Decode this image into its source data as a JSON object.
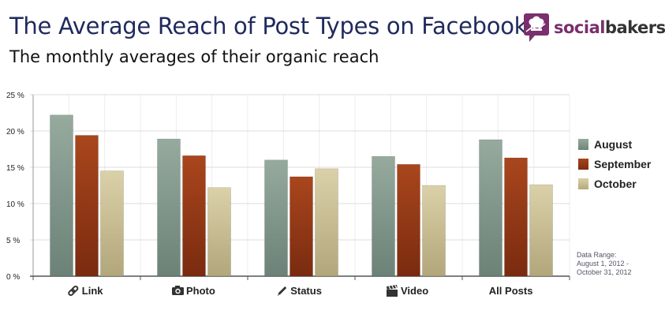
{
  "header": {
    "title": "The Average Reach of Post Types on Facebook",
    "subtitle": "The monthly averages of their organic reach"
  },
  "brand": {
    "name_part1": "social",
    "name_part2": "bakers",
    "logo_icon": "chef-hat-speech-bubble-icon"
  },
  "note": {
    "line1": "Data Range:",
    "line2": "August 1, 2012 -",
    "line3": "October 31, 2012"
  },
  "colors": {
    "august": "#7e9489",
    "september": "#8e3414",
    "october": "#c8bd92",
    "grid": "#dcdcdc",
    "axis": "#555555"
  },
  "chart_data": {
    "type": "bar",
    "title": "The Average Reach of Post Types on Facebook",
    "subtitle": "The monthly averages of their organic reach",
    "categories": [
      "Link",
      "Photo",
      "Status",
      "Video",
      "All Posts"
    ],
    "category_icons": [
      "link-icon",
      "camera-icon",
      "pencil-icon",
      "clapperboard-icon",
      ""
    ],
    "series": [
      {
        "name": "August",
        "values": [
          22.2,
          18.9,
          16.0,
          16.5,
          18.8
        ]
      },
      {
        "name": "September",
        "values": [
          19.4,
          16.6,
          13.7,
          15.4,
          16.3
        ]
      },
      {
        "name": "October",
        "values": [
          14.5,
          12.2,
          14.8,
          12.5,
          12.6
        ]
      }
    ],
    "ylim": [
      0,
      25
    ],
    "yticks": [
      0,
      5,
      10,
      15,
      20,
      25
    ],
    "ytick_labels": [
      "0 %",
      "5 %",
      "10 %",
      "15 %",
      "20 %",
      "25 %"
    ],
    "grid": true,
    "legend_position": "right"
  }
}
